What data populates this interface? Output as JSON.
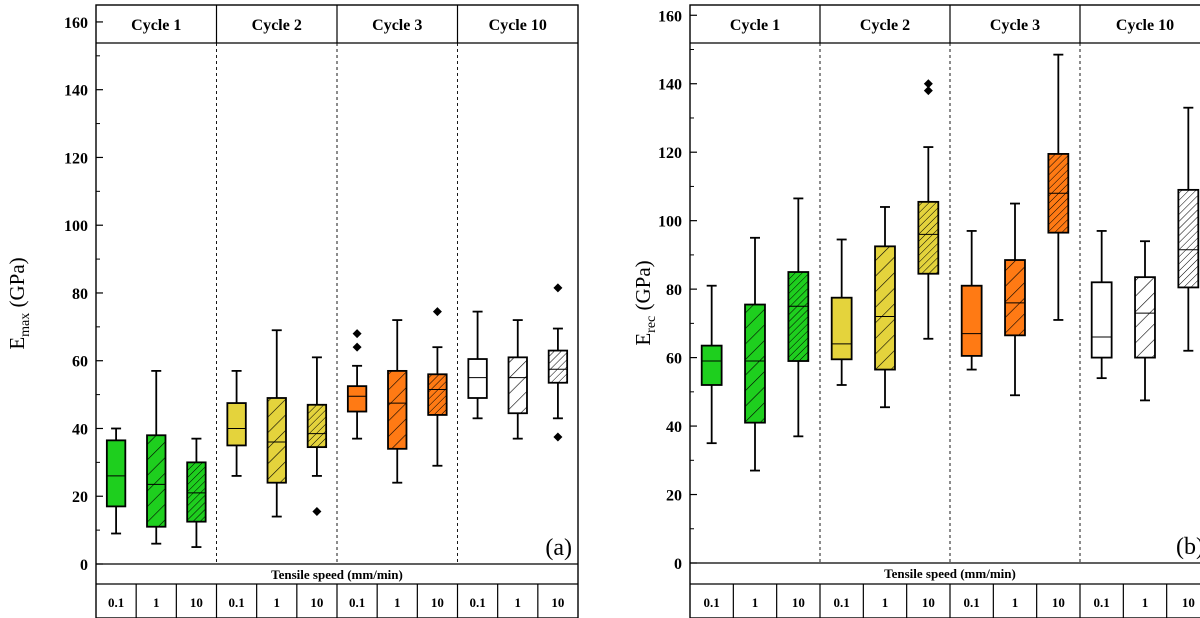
{
  "chart_data": [
    {
      "type": "box",
      "panel_label": "(a)",
      "ylabel_main": "E",
      "ylabel_sub": "max",
      "ylabel_unit": " (GPa)",
      "ylim": [
        0,
        165
      ],
      "yticks": [
        0,
        20,
        40,
        60,
        80,
        100,
        120,
        140,
        160
      ],
      "x_title": "Tensile speed (mm/min)",
      "groups": [
        "Cycle 1",
        "Cycle 2",
        "Cycle 3",
        "Cycle 10"
      ],
      "speeds": [
        "0.1",
        "1",
        "10"
      ],
      "colors": [
        "#1ecf1e",
        "#e4d33c",
        "#ff7a14",
        "#ffffff"
      ],
      "boxes": [
        {
          "group": 0,
          "speed": 0,
          "hatch": "none",
          "whislo": 9,
          "q1": 17,
          "med": 26,
          "q3": 36.5,
          "whishi": 40,
          "fliers": []
        },
        {
          "group": 0,
          "speed": 1,
          "hatch": "sparse",
          "whislo": 6,
          "q1": 11,
          "med": 23.5,
          "q3": 38,
          "whishi": 57,
          "fliers": []
        },
        {
          "group": 0,
          "speed": 2,
          "hatch": "dense",
          "whislo": 5,
          "q1": 12.5,
          "med": 21,
          "q3": 30,
          "whishi": 37,
          "fliers": []
        },
        {
          "group": 1,
          "speed": 0,
          "hatch": "none",
          "whislo": 26,
          "q1": 35,
          "med": 40,
          "q3": 47.5,
          "whishi": 57,
          "fliers": []
        },
        {
          "group": 1,
          "speed": 1,
          "hatch": "sparse",
          "whislo": 14,
          "q1": 24,
          "med": 36,
          "q3": 49,
          "whishi": 69,
          "fliers": []
        },
        {
          "group": 1,
          "speed": 2,
          "hatch": "dense",
          "whislo": 26,
          "q1": 34.5,
          "med": 38.5,
          "q3": 47,
          "whishi": 61,
          "fliers": [
            15.5
          ]
        },
        {
          "group": 2,
          "speed": 0,
          "hatch": "none",
          "whislo": 37,
          "q1": 45,
          "med": 49.5,
          "q3": 52.5,
          "whishi": 58.5,
          "fliers": [
            64,
            68
          ]
        },
        {
          "group": 2,
          "speed": 1,
          "hatch": "sparse",
          "whislo": 24,
          "q1": 34,
          "med": 47.5,
          "q3": 57,
          "whishi": 72,
          "fliers": []
        },
        {
          "group": 2,
          "speed": 2,
          "hatch": "dense",
          "whislo": 29,
          "q1": 44,
          "med": 51.5,
          "q3": 56,
          "whishi": 64,
          "fliers": [
            74.5
          ]
        },
        {
          "group": 3,
          "speed": 0,
          "hatch": "none",
          "whislo": 43,
          "q1": 49,
          "med": 55,
          "q3": 60.5,
          "whishi": 74.5,
          "fliers": []
        },
        {
          "group": 3,
          "speed": 1,
          "hatch": "sparse",
          "whislo": 37,
          "q1": 44.5,
          "med": 55,
          "q3": 61,
          "whishi": 72,
          "fliers": []
        },
        {
          "group": 3,
          "speed": 2,
          "hatch": "dense",
          "whislo": 43,
          "q1": 53.5,
          "med": 57.5,
          "q3": 63,
          "whishi": 69.5,
          "fliers": [
            37.5,
            81.5
          ]
        }
      ]
    },
    {
      "type": "box",
      "panel_label": "(b)",
      "ylabel_main": "E",
      "ylabel_sub": "rec",
      "ylabel_unit": " (GPa)",
      "ylim": [
        0,
        163
      ],
      "yticks": [
        0,
        20,
        40,
        60,
        80,
        100,
        120,
        140,
        160
      ],
      "x_title": "Tensile speed (mm/min)",
      "groups": [
        "Cycle 1",
        "Cycle 2",
        "Cycle 3",
        "Cycle 10"
      ],
      "speeds": [
        "0.1",
        "1",
        "10"
      ],
      "colors": [
        "#1ecf1e",
        "#e4d33c",
        "#ff7a14",
        "#ffffff"
      ],
      "boxes": [
        {
          "group": 0,
          "speed": 0,
          "hatch": "none",
          "whislo": 35,
          "q1": 52,
          "med": 59,
          "q3": 63.5,
          "whishi": 81,
          "fliers": []
        },
        {
          "group": 0,
          "speed": 1,
          "hatch": "sparse",
          "whislo": 27,
          "q1": 41,
          "med": 59,
          "q3": 75.5,
          "whishi": 95,
          "fliers": []
        },
        {
          "group": 0,
          "speed": 2,
          "hatch": "dense",
          "whislo": 37,
          "q1": 59,
          "med": 75,
          "q3": 85,
          "whishi": 106.5,
          "fliers": []
        },
        {
          "group": 1,
          "speed": 0,
          "hatch": "none",
          "whislo": 52,
          "q1": 59.5,
          "med": 64,
          "q3": 77.5,
          "whishi": 94.5,
          "fliers": []
        },
        {
          "group": 1,
          "speed": 1,
          "hatch": "sparse",
          "whislo": 45.5,
          "q1": 56.5,
          "med": 72,
          "q3": 92.5,
          "whishi": 104,
          "fliers": []
        },
        {
          "group": 1,
          "speed": 2,
          "hatch": "dense",
          "whislo": 65.5,
          "q1": 84.5,
          "med": 96,
          "q3": 105.5,
          "whishi": 121.5,
          "fliers": [
            138,
            140
          ]
        },
        {
          "group": 2,
          "speed": 0,
          "hatch": "none",
          "whislo": 56.5,
          "q1": 60.5,
          "med": 67,
          "q3": 81,
          "whishi": 97,
          "fliers": []
        },
        {
          "group": 2,
          "speed": 1,
          "hatch": "sparse",
          "whislo": 49,
          "q1": 66.5,
          "med": 76,
          "q3": 88.5,
          "whishi": 105,
          "fliers": []
        },
        {
          "group": 2,
          "speed": 2,
          "hatch": "dense",
          "whislo": 71,
          "q1": 96.5,
          "med": 108,
          "q3": 119.5,
          "whishi": 148.5,
          "fliers": []
        },
        {
          "group": 3,
          "speed": 0,
          "hatch": "none",
          "whislo": 54,
          "q1": 60,
          "med": 66,
          "q3": 82,
          "whishi": 97,
          "fliers": []
        },
        {
          "group": 3,
          "speed": 1,
          "hatch": "sparse",
          "whislo": 47.5,
          "q1": 60,
          "med": 73,
          "q3": 83.5,
          "whishi": 94,
          "fliers": []
        },
        {
          "group": 3,
          "speed": 2,
          "hatch": "dense",
          "whislo": 62,
          "q1": 80.5,
          "med": 91.5,
          "q3": 109,
          "whishi": 133,
          "fliers": []
        }
      ]
    }
  ]
}
